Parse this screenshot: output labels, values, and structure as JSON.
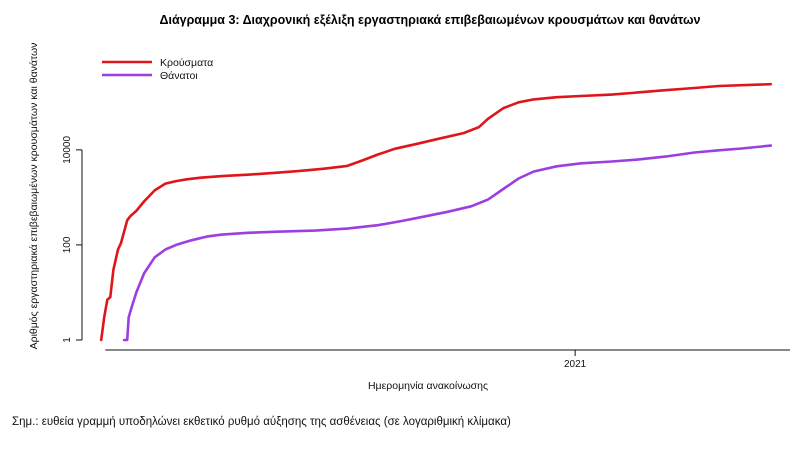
{
  "chart_data": {
    "type": "line",
    "title": "Διάγραμμα 3: Διαχρονική εξέλιξη εργαστηριακά επιβεβαιωμένων κρουσμάτων και θανάτων",
    "xlabel": "Ημερομηνία ανακοίνωσης",
    "ylabel": "Αριθμός εργαστηριακά επιβεβαιωμένων κρουσμάτων και θανάτων",
    "y_scale": "log",
    "ylim": [
      1,
      200000
    ],
    "y_ticks": [
      {
        "value": 1,
        "label": "1"
      },
      {
        "value": 100,
        "label": "100"
      },
      {
        "value": 10000,
        "label": "10000"
      }
    ],
    "xlim": [
      "2020-02-20",
      "2021-05-15"
    ],
    "x_ticks": [
      {
        "value": "2021-01-01",
        "label": "2021"
      }
    ],
    "legend_position": "top-left",
    "grid": false,
    "series": [
      {
        "name": "Κρούσματα",
        "color": "#e0151b",
        "points": [
          [
            "2020-02-26",
            1
          ],
          [
            "2020-02-28",
            3
          ],
          [
            "2020-03-01",
            7
          ],
          [
            "2020-03-03",
            8
          ],
          [
            "2020-03-05",
            30
          ],
          [
            "2020-03-08",
            80
          ],
          [
            "2020-03-10",
            110
          ],
          [
            "2020-03-12",
            190
          ],
          [
            "2020-03-14",
            330
          ],
          [
            "2020-03-16",
            400
          ],
          [
            "2020-03-20",
            520
          ],
          [
            "2020-03-25",
            820
          ],
          [
            "2020-04-01",
            1400
          ],
          [
            "2020-04-08",
            1950
          ],
          [
            "2020-04-15",
            2200
          ],
          [
            "2020-04-22",
            2400
          ],
          [
            "2020-05-01",
            2600
          ],
          [
            "2020-05-15",
            2800
          ],
          [
            "2020-06-01",
            3000
          ],
          [
            "2020-06-20",
            3300
          ],
          [
            "2020-07-05",
            3600
          ],
          [
            "2020-07-20",
            4000
          ],
          [
            "2020-08-05",
            4600
          ],
          [
            "2020-08-15",
            6000
          ],
          [
            "2020-08-25",
            8000
          ],
          [
            "2020-09-05",
            10500
          ],
          [
            "2020-09-20",
            13500
          ],
          [
            "2020-10-05",
            17500
          ],
          [
            "2020-10-20",
            22500
          ],
          [
            "2020-10-30",
            30000
          ],
          [
            "2020-11-05",
            45000
          ],
          [
            "2020-11-15",
            75000
          ],
          [
            "2020-11-25",
            100000
          ],
          [
            "2020-12-05",
            115000
          ],
          [
            "2020-12-20",
            128000
          ],
          [
            "2021-01-05",
            136000
          ],
          [
            "2021-01-25",
            145000
          ],
          [
            "2021-02-10",
            160000
          ],
          [
            "2021-03-01",
            180000
          ],
          [
            "2021-03-20",
            200000
          ],
          [
            "2021-04-05",
            220000
          ],
          [
            "2021-05-09",
            240000
          ]
        ]
      },
      {
        "name": "Θάνατοι",
        "color": "#9b3fe0",
        "points": [
          [
            "2020-03-12",
            1
          ],
          [
            "2020-03-14",
            1
          ],
          [
            "2020-03-15",
            3
          ],
          [
            "2020-03-17",
            5
          ],
          [
            "2020-03-20",
            10
          ],
          [
            "2020-03-25",
            25
          ],
          [
            "2020-04-01",
            55
          ],
          [
            "2020-04-08",
            80
          ],
          [
            "2020-04-15",
            100
          ],
          [
            "2020-04-25",
            125
          ],
          [
            "2020-05-05",
            150
          ],
          [
            "2020-05-15",
            165
          ],
          [
            "2020-06-01",
            180
          ],
          [
            "2020-06-20",
            190
          ],
          [
            "2020-07-15",
            200
          ],
          [
            "2020-08-05",
            220
          ],
          [
            "2020-08-25",
            260
          ],
          [
            "2020-09-10",
            320
          ],
          [
            "2020-09-25",
            400
          ],
          [
            "2020-10-10",
            500
          ],
          [
            "2020-10-25",
            650
          ],
          [
            "2020-11-05",
            900
          ],
          [
            "2020-11-15",
            1500
          ],
          [
            "2020-11-25",
            2500
          ],
          [
            "2020-12-05",
            3500
          ],
          [
            "2020-12-20",
            4500
          ],
          [
            "2021-01-05",
            5200
          ],
          [
            "2021-01-25",
            5700
          ],
          [
            "2021-02-10",
            6200
          ],
          [
            "2021-03-01",
            7200
          ],
          [
            "2021-03-20",
            8800
          ],
          [
            "2021-04-05",
            9800
          ],
          [
            "2021-04-20",
            10700
          ],
          [
            "2021-05-09",
            12300
          ]
        ]
      }
    ]
  },
  "footnote": "Σημ.: ευθεία γραμμή υποδηλώνει εκθετικό ρυθμό αύξησης της ασθένειας (σε λογαριθμική κλίμακα)"
}
